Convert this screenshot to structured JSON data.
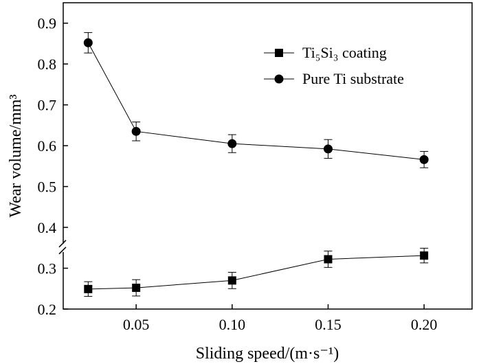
{
  "chart_data": {
    "type": "line",
    "xlabel": "Sliding speed/(m·s⁻¹)",
    "ylabel": "Wear volume/mm³",
    "xlim": [
      0.012,
      0.225
    ],
    "ylim": [
      0.2,
      0.95
    ],
    "x_ticks": [
      0.05,
      0.1,
      0.15,
      0.2
    ],
    "x_tick_labels": [
      "0.05",
      "0.10",
      "0.15",
      "0.20"
    ],
    "y_ticks": [
      0.2,
      0.3,
      0.4,
      0.5,
      0.6,
      0.7,
      0.8,
      0.9
    ],
    "y_tick_labels": [
      "0.2",
      "0.3",
      "0.4",
      "0.5",
      "0.6",
      "0.7",
      "0.8",
      "0.9"
    ],
    "axis_break": 0.35,
    "grid": false,
    "legend_position": "top-right",
    "series": [
      {
        "name": "Ti₅Si₃ coating",
        "marker": "square",
        "x": [
          0.025,
          0.05,
          0.1,
          0.15,
          0.2
        ],
        "y": [
          0.249,
          0.252,
          0.27,
          0.322,
          0.331
        ],
        "error": [
          0.018,
          0.02,
          0.02,
          0.02,
          0.018
        ]
      },
      {
        "name": "Pure Ti substrate",
        "marker": "circle",
        "x": [
          0.025,
          0.05,
          0.1,
          0.15,
          0.2
        ],
        "y": [
          0.852,
          0.635,
          0.605,
          0.592,
          0.566
        ],
        "error": [
          0.025,
          0.023,
          0.022,
          0.023,
          0.02
        ]
      }
    ]
  }
}
